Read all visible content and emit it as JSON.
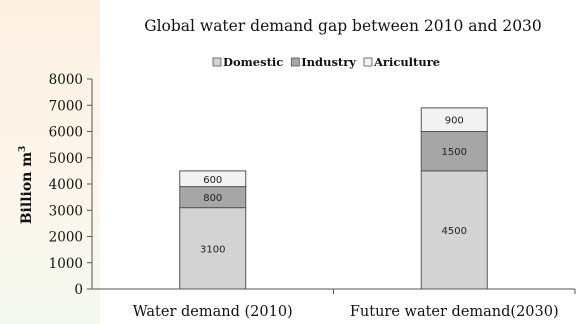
{
  "chart_data": {
    "type": "bar",
    "stacked": true,
    "title": "Global water demand gap between 2010 and 2030",
    "ylabel": "Billion m",
    "ylabel_superscript": "3",
    "xlabel": "",
    "ylim": [
      0,
      8000
    ],
    "yticks": [
      0,
      1000,
      2000,
      3000,
      4000,
      5000,
      6000,
      7000,
      8000
    ],
    "categories": [
      "Water demand (2010)",
      "Future water demand(2030)"
    ],
    "series": [
      {
        "name": "Domestic",
        "values": [
          3100,
          4500
        ],
        "labels": [
          "3100",
          "4500"
        ],
        "color": "#d3d3d3"
      },
      {
        "name": "Industry",
        "values": [
          800,
          1500
        ],
        "labels": [
          "800",
          "1500"
        ],
        "color": "#a6a6a6"
      },
      {
        "name": "Ariculture",
        "values": [
          600,
          900
        ],
        "labels": [
          "600",
          "900"
        ],
        "color": "#f2f2f2"
      }
    ],
    "legend_position": "top",
    "grid": false
  }
}
